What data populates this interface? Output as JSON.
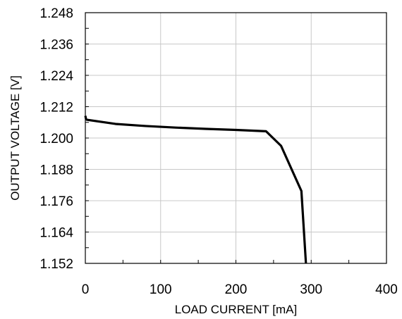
{
  "chart_data": {
    "type": "line",
    "title": "",
    "xlabel": "LOAD CURRENT [mA]",
    "ylabel": "OUTPUT VOLTAGE [V]",
    "xlim": [
      0,
      400
    ],
    "ylim": [
      1.152,
      1.248
    ],
    "x_ticks": [
      0,
      100,
      200,
      300,
      400
    ],
    "y_ticks": [
      1.152,
      1.164,
      1.176,
      1.188,
      1.2,
      1.212,
      1.224,
      1.236,
      1.248
    ],
    "y_tick_labels": [
      "1.152",
      "1.164",
      "1.176",
      "1.188",
      "1.200",
      "1.212",
      "1.224",
      "1.236",
      "1.248"
    ],
    "x_tick_labels": [
      "0",
      "100",
      "200",
      "300",
      "400"
    ],
    "grid": true,
    "legend": "none",
    "series": [
      {
        "color": "#000000",
        "x": [
          0,
          1,
          2,
          40,
          80,
          120,
          160,
          200,
          240,
          260,
          287,
          293
        ],
        "y": [
          1.2085,
          1.2072,
          1.207,
          1.2054,
          1.2046,
          1.204,
          1.2035,
          1.2031,
          1.2026,
          1.197,
          1.1797,
          1.152
        ]
      }
    ]
  }
}
